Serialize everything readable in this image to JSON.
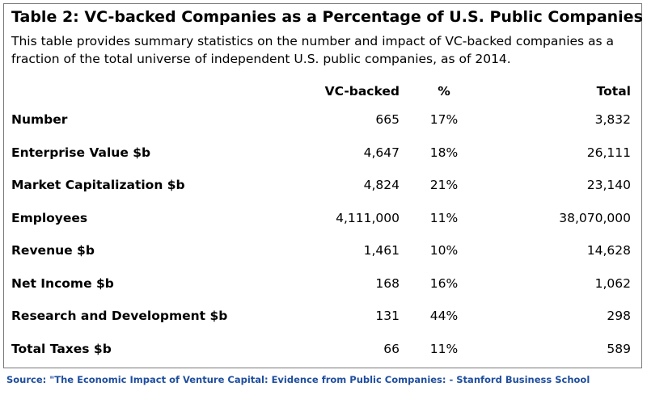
{
  "title": "Table 2: VC-backed Companies as a Percentage of U.S. Public Companies",
  "description": "This table provides summary statistics on the number and impact of VC-backed companies as a fraction of the total universe of independent U.S. public companies, as of 2014.",
  "table": {
    "headers": [
      "",
      "VC-backed",
      "%",
      "Total"
    ],
    "rows": [
      {
        "label": "Number",
        "vc": "665",
        "pct": "17%",
        "total": "3,832"
      },
      {
        "label": "Enterprise Value $b",
        "vc": "4,647",
        "pct": "18%",
        "total": "26,111"
      },
      {
        "label": "Market Capitalization $b",
        "vc": "4,824",
        "pct": "21%",
        "total": "23,140"
      },
      {
        "label": "Employees",
        "vc": "4,111,000",
        "pct": "11%",
        "total": "38,070,000"
      },
      {
        "label": "Revenue $b",
        "vc": "1,461",
        "pct": "10%",
        "total": "14,628"
      },
      {
        "label": "Net Income $b",
        "vc": "168",
        "pct": "16%",
        "total": "1,062"
      },
      {
        "label": "Research and Development $b",
        "vc": "131",
        "pct": "44%",
        "total": "298"
      },
      {
        "label": "Total Taxes $b",
        "vc": "66",
        "pct": "11%",
        "total": "589"
      }
    ]
  },
  "source": "Source: \"The Economic Impact of Venture Capital: Evidence from Public Companies: - Stanford Business School",
  "colors": {
    "source_text": "#1f4e9e",
    "frame_border": "#7a7a7a"
  }
}
